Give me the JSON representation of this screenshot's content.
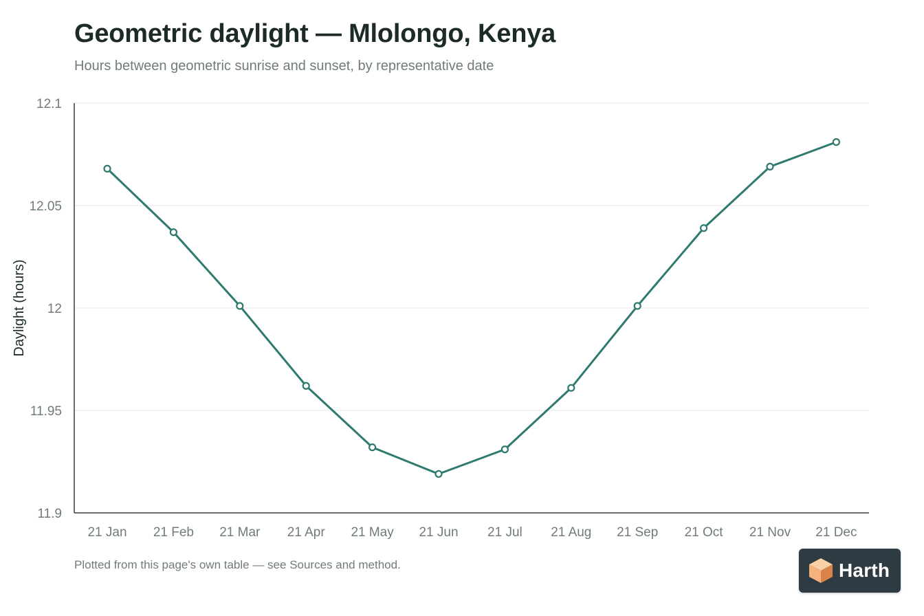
{
  "chart_data": {
    "type": "line",
    "title": "Geometric daylight — Mlolongo, Kenya",
    "subtitle": "Hours between geometric sunrise and sunset, by representative date",
    "xlabel": "",
    "ylabel": "Daylight (hours)",
    "categories": [
      "21 Jan",
      "21 Feb",
      "21 Mar",
      "21 Apr",
      "21 May",
      "21 Jun",
      "21 Jul",
      "21 Aug",
      "21 Sep",
      "21 Oct",
      "21 Nov",
      "21 Dec"
    ],
    "series": [
      {
        "values": [
          12.068,
          12.037,
          12.001,
          11.962,
          11.932,
          11.919,
          11.931,
          11.961,
          12.001,
          12.039,
          12.069,
          12.081
        ]
      }
    ],
    "ylim": [
      11.9,
      12.1
    ],
    "yticks": [
      11.9,
      11.95,
      12,
      12.05,
      12.1
    ],
    "ytick_labels": [
      "11.9",
      "11.95",
      "12",
      "12.05",
      "12.1"
    ],
    "grid": true,
    "legend": "none",
    "colors": {
      "line": "#2e7a6e",
      "marker_fill": "#ffffff",
      "grid": "#e6e9e8",
      "axis": "#3a3f3d",
      "tick_text": "#6f7c77"
    }
  },
  "footnote": "Plotted from this page's own table — see Sources and method.",
  "brand": {
    "name": "Harth",
    "icon": "cube-logo-icon",
    "colors": {
      "background": "#2f3b43",
      "logo_light": "#f6b27c",
      "logo_dark": "#d9834a"
    }
  }
}
